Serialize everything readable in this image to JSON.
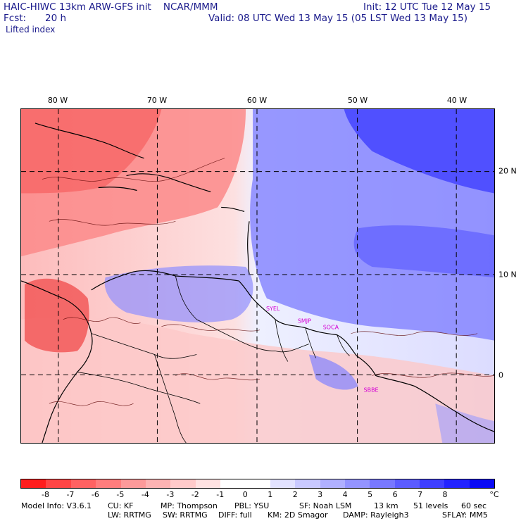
{
  "header": {
    "model_line": "HAIC-HIWC 13km ARW-GFS init    NCAR/MMM",
    "init_line": "Init: 12 UTC Tue 12 May 15",
    "fcst_label": "Fcst:",
    "fcst_value": "20 h",
    "valid_line": "Valid: 08 UTC Wed 13 May 15 (05 LST Wed 13 May 15)",
    "field_name": "Lifted index"
  },
  "map": {
    "lon_labels": [
      "80 W",
      "70 W",
      "60 W",
      "50 W",
      "40 W"
    ],
    "lat_labels": [
      "20 N",
      "10 N",
      "0"
    ],
    "stations": [
      "SYEL",
      "SMJP",
      "SOCA",
      "SBBE"
    ],
    "station_color": "#d400d4"
  },
  "colorbar": {
    "colors": [
      "#ff1d1d",
      "#ff4545",
      "#ff6262",
      "#ff7d7d",
      "#fd9a9a",
      "#fdb3b3",
      "#ffcaca",
      "#ffe2e2",
      "#ffffff",
      "#ffffff",
      "#e2e2ff",
      "#c9c9ff",
      "#b0b0ff",
      "#9494ff",
      "#7878ff",
      "#5c5cff",
      "#3f3fff",
      "#2323ff",
      "#0a0af5"
    ],
    "labels": [
      "-8",
      "-7",
      "-6",
      "-5",
      "-4",
      "-3",
      "-2",
      "-1",
      "0",
      "1",
      "2",
      "3",
      "4",
      "5",
      "6",
      "7",
      "8"
    ],
    "unit": "°C"
  },
  "footer": {
    "line1": [
      "Model Info: V3.6.1",
      "CU: KF",
      "MP: Thompson",
      "PBL: YSU",
      "SF: Noah LSM",
      "13 km",
      "51 levels",
      "60 sec"
    ],
    "line2": [
      "LW: RRTMG",
      "SW: RRTMG",
      "DIFF: full",
      "KM: 2D Smagor",
      "DAMP: Rayleigh3",
      "SFLAY: MM5"
    ]
  }
}
